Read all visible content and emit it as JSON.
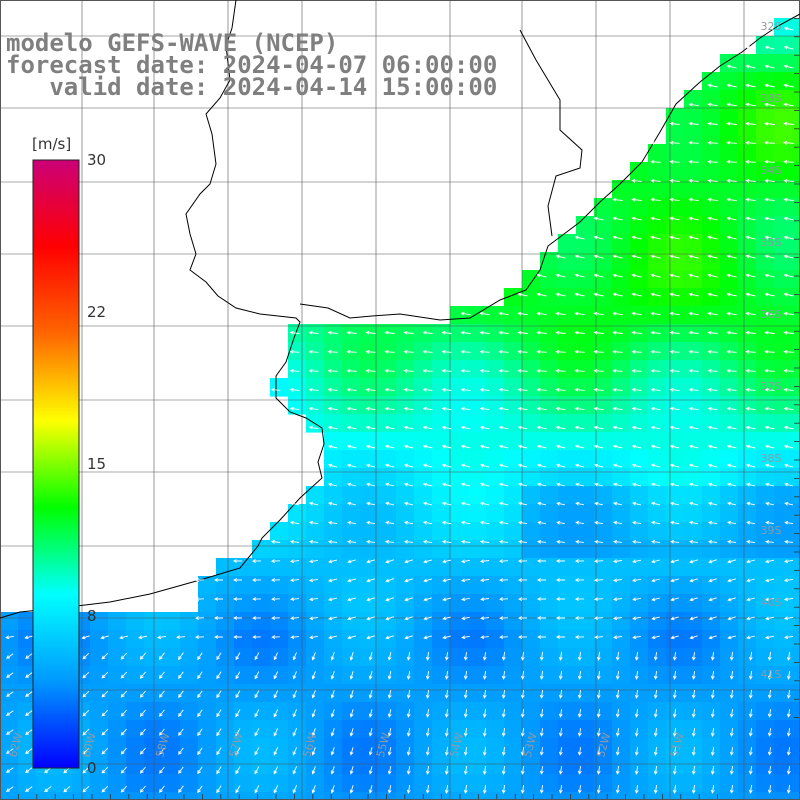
{
  "title": {
    "line1": "modelo GEFS-WAVE (NCEP)",
    "line2": "forecast date: 2024-04-07 06:00:00",
    "line3": "   valid date: 2024-04-14 15:00:00"
  },
  "colorbar": {
    "unit": "[m/s]",
    "ticks": [
      "30",
      "22",
      "15",
      "8",
      "0"
    ],
    "range": [
      0,
      30
    ],
    "colors": [
      "#0000ff",
      "#0099ff",
      "#00ffff",
      "#00ff00",
      "#ffff00",
      "#ff6600",
      "#ff0000",
      "#cc0077"
    ]
  },
  "map": {
    "field": "wind speed",
    "land_color": "#ffffff",
    "grid_color": "#555555",
    "arrow_color": "#ffffff",
    "lat_labels": [
      "32S",
      "33S",
      "34S",
      "35S",
      "36S",
      "37S",
      "38S",
      "39S",
      "40S",
      "41S"
    ],
    "lon_labels": [
      "62W",
      "60W",
      "58W",
      "57W",
      "56W",
      "55W",
      "54W",
      "53W",
      "52W",
      "51W"
    ]
  }
}
